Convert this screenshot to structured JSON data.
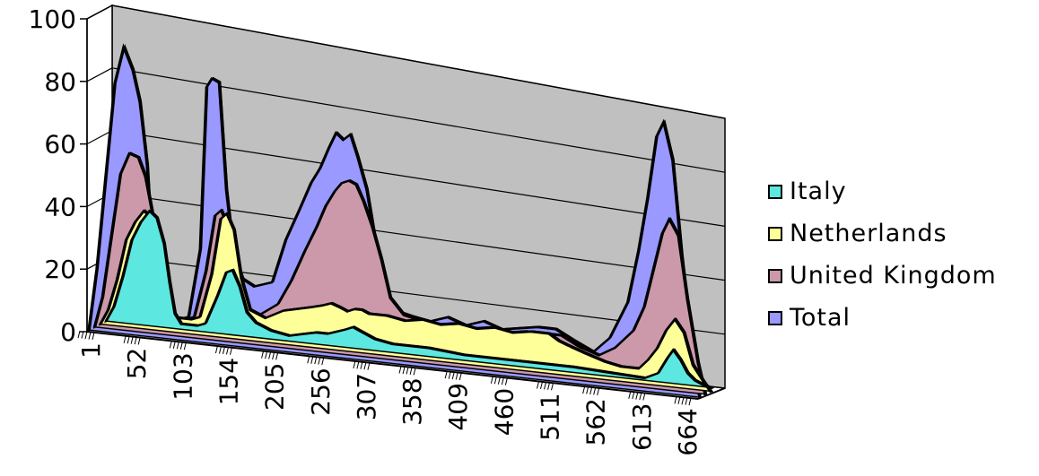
{
  "chart_data": {
    "type": "area",
    "title": "",
    "xlabel": "",
    "ylabel": "",
    "ylim": [
      0,
      100
    ],
    "yticks": [
      0,
      20,
      40,
      60,
      80,
      100
    ],
    "xlim": [
      1,
      680
    ],
    "xticks": [
      1,
      52,
      103,
      154,
      205,
      256,
      307,
      358,
      409,
      460,
      511,
      562,
      613,
      664
    ],
    "three_d": true,
    "grid": true,
    "legend_position": "right",
    "series": [
      {
        "name": "Italy",
        "color": "#5ce8e0",
        "points": [
          [
            1,
            0
          ],
          [
            10,
            5
          ],
          [
            20,
            15
          ],
          [
            30,
            27
          ],
          [
            40,
            33
          ],
          [
            50,
            37
          ],
          [
            58,
            35
          ],
          [
            66,
            27
          ],
          [
            72,
            15
          ],
          [
            78,
            5
          ],
          [
            85,
            2
          ],
          [
            103,
            2
          ],
          [
            112,
            3
          ],
          [
            125,
            12
          ],
          [
            135,
            20
          ],
          [
            142,
            21
          ],
          [
            150,
            16
          ],
          [
            158,
            8
          ],
          [
            168,
            5
          ],
          [
            185,
            3
          ],
          [
            205,
            2
          ],
          [
            220,
            3
          ],
          [
            235,
            4
          ],
          [
            248,
            4
          ],
          [
            258,
            5
          ],
          [
            268,
            6
          ],
          [
            276,
            7
          ],
          [
            284,
            6
          ],
          [
            292,
            5
          ],
          [
            300,
            4
          ],
          [
            320,
            3
          ],
          [
            360,
            3
          ],
          [
            400,
            2
          ],
          [
            460,
            2
          ],
          [
            520,
            2
          ],
          [
            600,
            1
          ],
          [
            615,
            3
          ],
          [
            625,
            8
          ],
          [
            632,
            11
          ],
          [
            640,
            8
          ],
          [
            648,
            4
          ],
          [
            656,
            2
          ],
          [
            664,
            1
          ],
          [
            675,
            0
          ]
        ]
      },
      {
        "name": "Netherlands",
        "color": "#ffff99",
        "points": [
          [
            1,
            0
          ],
          [
            10,
            5
          ],
          [
            20,
            15
          ],
          [
            30,
            28
          ],
          [
            40,
            34
          ],
          [
            50,
            38
          ],
          [
            58,
            36
          ],
          [
            66,
            28
          ],
          [
            72,
            16
          ],
          [
            78,
            7
          ],
          [
            85,
            5
          ],
          [
            103,
            5
          ],
          [
            112,
            6
          ],
          [
            125,
            20
          ],
          [
            135,
            38
          ],
          [
            142,
            40
          ],
          [
            150,
            35
          ],
          [
            158,
            20
          ],
          [
            168,
            10
          ],
          [
            185,
            8
          ],
          [
            205,
            11
          ],
          [
            220,
            12
          ],
          [
            235,
            13
          ],
          [
            248,
            14
          ],
          [
            258,
            15
          ],
          [
            268,
            14
          ],
          [
            276,
            13
          ],
          [
            284,
            14
          ],
          [
            292,
            14
          ],
          [
            300,
            13
          ],
          [
            320,
            13
          ],
          [
            340,
            12
          ],
          [
            360,
            13
          ],
          [
            380,
            12
          ],
          [
            400,
            13
          ],
          [
            420,
            12
          ],
          [
            440,
            13
          ],
          [
            460,
            12
          ],
          [
            480,
            13
          ],
          [
            500,
            13
          ],
          [
            511,
            11
          ],
          [
            520,
            10
          ],
          [
            540,
            8
          ],
          [
            562,
            6
          ],
          [
            580,
            5
          ],
          [
            600,
            5
          ],
          [
            610,
            8
          ],
          [
            620,
            12
          ],
          [
            630,
            18
          ],
          [
            640,
            22
          ],
          [
            650,
            18
          ],
          [
            660,
            8
          ],
          [
            672,
            3
          ],
          [
            680,
            0
          ]
        ]
      },
      {
        "name": "United Kingdom",
        "color": "#cc99aa",
        "points": [
          [
            1,
            0
          ],
          [
            10,
            10
          ],
          [
            20,
            30
          ],
          [
            30,
            50
          ],
          [
            40,
            57
          ],
          [
            50,
            56
          ],
          [
            58,
            50
          ],
          [
            66,
            38
          ],
          [
            72,
            20
          ],
          [
            78,
            8
          ],
          [
            85,
            6
          ],
          [
            103,
            6
          ],
          [
            112,
            7
          ],
          [
            125,
            22
          ],
          [
            135,
            40
          ],
          [
            142,
            42
          ],
          [
            150,
            37
          ],
          [
            158,
            22
          ],
          [
            168,
            12
          ],
          [
            185,
            10
          ],
          [
            205,
            14
          ],
          [
            220,
            22
          ],
          [
            235,
            32
          ],
          [
            248,
            40
          ],
          [
            258,
            47
          ],
          [
            268,
            52
          ],
          [
            276,
            55
          ],
          [
            284,
            56
          ],
          [
            292,
            55
          ],
          [
            300,
            50
          ],
          [
            310,
            42
          ],
          [
            320,
            32
          ],
          [
            330,
            20
          ],
          [
            345,
            15
          ],
          [
            360,
            14
          ],
          [
            380,
            13
          ],
          [
            400,
            14
          ],
          [
            420,
            13
          ],
          [
            440,
            14
          ],
          [
            460,
            13
          ],
          [
            480,
            14
          ],
          [
            500,
            14
          ],
          [
            511,
            14
          ],
          [
            520,
            14
          ],
          [
            540,
            11
          ],
          [
            562,
            9
          ],
          [
            580,
            12
          ],
          [
            600,
            18
          ],
          [
            612,
            26
          ],
          [
            622,
            38
          ],
          [
            632,
            50
          ],
          [
            640,
            55
          ],
          [
            650,
            50
          ],
          [
            660,
            30
          ],
          [
            672,
            10
          ],
          [
            680,
            0
          ]
        ]
      },
      {
        "name": "Total",
        "color": "#9999ff",
        "points": [
          [
            1,
            0
          ],
          [
            10,
            20
          ],
          [
            20,
            50
          ],
          [
            30,
            80
          ],
          [
            40,
            92
          ],
          [
            50,
            85
          ],
          [
            58,
            75
          ],
          [
            66,
            55
          ],
          [
            72,
            25
          ],
          [
            78,
            10
          ],
          [
            85,
            7
          ],
          [
            103,
            7
          ],
          [
            112,
            8
          ],
          [
            125,
            30
          ],
          [
            132,
            82
          ],
          [
            138,
            85
          ],
          [
            146,
            84
          ],
          [
            154,
            50
          ],
          [
            162,
            30
          ],
          [
            172,
            22
          ],
          [
            185,
            20
          ],
          [
            205,
            22
          ],
          [
            220,
            36
          ],
          [
            235,
            46
          ],
          [
            248,
            55
          ],
          [
            258,
            60
          ],
          [
            268,
            67
          ],
          [
            276,
            72
          ],
          [
            284,
            70
          ],
          [
            292,
            72
          ],
          [
            300,
            65
          ],
          [
            310,
            55
          ],
          [
            320,
            38
          ],
          [
            330,
            22
          ],
          [
            345,
            17
          ],
          [
            360,
            16
          ],
          [
            380,
            15
          ],
          [
            400,
            17
          ],
          [
            420,
            15
          ],
          [
            440,
            17
          ],
          [
            460,
            15
          ],
          [
            480,
            16
          ],
          [
            500,
            17
          ],
          [
            511,
            17
          ],
          [
            520,
            17
          ],
          [
            540,
            14
          ],
          [
            562,
            11
          ],
          [
            580,
            16
          ],
          [
            600,
            28
          ],
          [
            612,
            45
          ],
          [
            622,
            62
          ],
          [
            632,
            82
          ],
          [
            640,
            87
          ],
          [
            650,
            75
          ],
          [
            660,
            45
          ],
          [
            672,
            15
          ],
          [
            680,
            0
          ]
        ]
      }
    ]
  }
}
